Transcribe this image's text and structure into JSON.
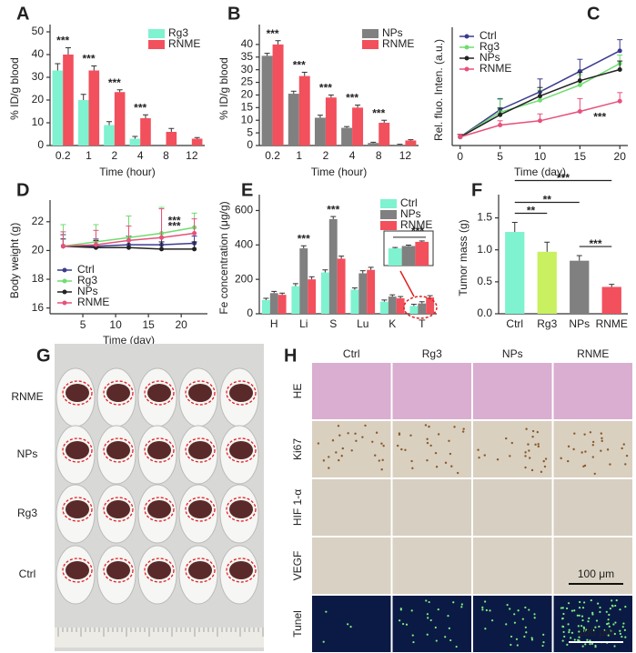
{
  "chart_data": [
    {
      "type": "bar",
      "panel": "A",
      "y_label": "% ID/g blood",
      "x_label": "Time (hour)",
      "categories": [
        "0.2",
        "1",
        "2",
        "4",
        "8",
        "12"
      ],
      "series": [
        {
          "name": "Rg3",
          "color": "#7ff2d0",
          "values": [
            33,
            20,
            9,
            3,
            0,
            0
          ],
          "errors": [
            3,
            2.5,
            1.5,
            1,
            0,
            0
          ]
        },
        {
          "name": "RNME",
          "color": "#f2505c",
          "values": [
            40,
            33,
            23.5,
            12,
            6,
            3
          ],
          "errors": [
            3,
            2,
            1,
            1.5,
            1.5,
            0.5
          ]
        }
      ],
      "ylim": [
        0,
        50
      ],
      "yticks": [
        0,
        10,
        20,
        30,
        40,
        50
      ],
      "legend": "upper right",
      "annotations": [
        {
          "text": "***",
          "category": "0.2"
        },
        {
          "text": "***",
          "category": "1"
        },
        {
          "text": "***",
          "category": "2"
        },
        {
          "text": "***",
          "category": "4"
        }
      ]
    },
    {
      "type": "bar",
      "panel": "B",
      "y_label": "% ID/g blood",
      "x_label": "Time (hour)",
      "categories": [
        "0.2",
        "1",
        "2",
        "4",
        "8",
        "12"
      ],
      "series": [
        {
          "name": "NPs",
          "color": "#808080",
          "values": [
            35.5,
            20.5,
            11,
            7,
            1,
            0.3
          ],
          "errors": [
            1,
            1,
            1,
            0.5,
            0.3,
            0.2
          ]
        },
        {
          "name": "RNME",
          "color": "#f2505c",
          "values": [
            40,
            27.5,
            19,
            15,
            9,
            2
          ],
          "errors": [
            1.5,
            1.5,
            1,
            1,
            1,
            0.3
          ]
        }
      ],
      "ylim": [
        0,
        45
      ],
      "yticks": [
        0,
        5,
        10,
        15,
        20,
        25,
        30,
        35,
        40
      ],
      "legend": "upper right",
      "annotations": [
        {
          "text": "***",
          "category": "0.2"
        },
        {
          "text": "***",
          "category": "1"
        },
        {
          "text": "***",
          "category": "2"
        },
        {
          "text": "***",
          "category": "4"
        },
        {
          "text": "***",
          "category": "8"
        }
      ]
    },
    {
      "type": "line",
      "panel": "C",
      "y_label": "Rel. fluo. Inten. (a.u.)",
      "x_label": "Time (day)",
      "x": [
        0,
        5,
        10,
        15,
        20
      ],
      "series": [
        {
          "name": "Ctrl",
          "color": "#3b3b8f",
          "values": [
            1.0,
            4.2,
            6.3,
            8.7,
            11.1
          ],
          "errors": [
            0.3,
            1.3,
            1.5,
            1.4,
            1.3
          ]
        },
        {
          "name": "Rg3",
          "color": "#6fdc6f",
          "values": [
            1.0,
            3.9,
            5.3,
            7.1,
            9.6
          ],
          "errors": [
            0.3,
            1.5,
            1.2,
            1.2,
            1.0
          ]
        },
        {
          "name": "NPs",
          "color": "#222222",
          "values": [
            1.0,
            3.6,
            5.8,
            7.6,
            8.9
          ],
          "errors": [
            0.3,
            0.8,
            1.0,
            1.0,
            1.0
          ]
        },
        {
          "name": "RNME",
          "color": "#e8507a",
          "values": [
            1.0,
            2.4,
            2.9,
            4.0,
            5.2
          ],
          "errors": [
            0.3,
            0.5,
            0.8,
            1.5,
            1.0
          ]
        }
      ],
      "xlim": [
        -1,
        21
      ],
      "xticks": [
        0,
        5,
        10,
        15,
        20
      ],
      "ylim": [
        0,
        13
      ],
      "legend": "upper left",
      "annotations": [
        {
          "text": "***",
          "series": "RNME"
        }
      ]
    },
    {
      "type": "line",
      "panel": "D",
      "y_label": "Body weight (g)",
      "x_label": "Time (day)",
      "x": [
        2,
        7,
        12,
        17,
        22
      ],
      "series": [
        {
          "name": "Ctrl",
          "color": "#3b3b8f",
          "values": [
            20.3,
            20.3,
            20.4,
            20.4,
            20.5
          ],
          "errors": [
            0.8,
            0.5,
            0.6,
            0.5,
            0.5
          ]
        },
        {
          "name": "Rg3",
          "color": "#6fdc6f",
          "values": [
            20.3,
            20.6,
            20.9,
            21.2,
            21.6
          ],
          "errors": [
            1.5,
            1.2,
            1.5,
            1.8,
            1.0
          ]
        },
        {
          "name": "NPs",
          "color": "#222222",
          "values": [
            20.3,
            20.2,
            20.2,
            20.1,
            20.1
          ],
          "errors": [
            0.5,
            0.5,
            0.5,
            0.5,
            0.5
          ]
        },
        {
          "name": "RNME",
          "color": "#e8507a",
          "values": [
            20.3,
            20.4,
            20.7,
            20.9,
            21.2
          ],
          "errors": [
            1.0,
            1.0,
            1.0,
            2.0,
            1.0
          ]
        }
      ],
      "xlim": [
        0,
        24
      ],
      "xticks": [
        5,
        10,
        15,
        20
      ],
      "ylim": [
        15.6,
        23
      ],
      "yticks": [
        16,
        18,
        20,
        22
      ],
      "legend": "lower left",
      "annotations": [
        {
          "text": "***",
          "series": "Rg3"
        },
        {
          "text": "***",
          "series": "RNME"
        }
      ]
    },
    {
      "type": "bar",
      "panel": "E",
      "y_label": "Fe concentration (μg/g)",
      "categories": [
        "H",
        "Li",
        "S",
        "Lu",
        "K",
        "T"
      ],
      "series": [
        {
          "name": "Ctrl",
          "color": "#7ff2d0",
          "values": [
            80,
            160,
            240,
            140,
            70,
            45
          ],
          "errors": [
            10,
            15,
            15,
            10,
            10,
            10
          ]
        },
        {
          "name": "NPs",
          "color": "#808080",
          "values": [
            120,
            380,
            550,
            235,
            100,
            60
          ],
          "errors": [
            10,
            15,
            15,
            15,
            10,
            10
          ]
        },
        {
          "name": "RNME",
          "color": "#f2505c",
          "values": [
            110,
            200,
            320,
            255,
            90,
            95
          ],
          "errors": [
            10,
            15,
            15,
            15,
            10,
            10
          ]
        }
      ],
      "ylim": [
        0,
        650
      ],
      "yticks": [
        0,
        200,
        400,
        600
      ],
      "legend": "upper right",
      "annotations": [
        {
          "text": "***",
          "category": "Li"
        },
        {
          "text": "***",
          "category": "S"
        }
      ]
    },
    {
      "type": "bar",
      "panel": "F",
      "y_label": "Tumor mass (g)",
      "categories": [
        "Ctrl",
        "Rg3",
        "NPs",
        "RNME"
      ],
      "values": [
        1.28,
        0.97,
        0.83,
        0.42
      ],
      "errors": [
        0.15,
        0.15,
        0.08,
        0.04
      ],
      "colors": [
        "#7ff2d0",
        "#c8f060",
        "#808080",
        "#f2505c"
      ],
      "ylim": [
        0,
        1.75
      ],
      "yticks": [
        {
          "value": 0,
          "label": "0.0"
        },
        0.5,
        {
          "value": 1,
          "label": "1.0"
        },
        1.5
      ],
      "annotations": [
        {
          "text": "***",
          "between": [
            "Ctrl",
            "RNME"
          ]
        },
        {
          "text": "**",
          "between": [
            "Ctrl",
            "NPs"
          ]
        },
        {
          "text": "**",
          "between": [
            "Ctrl",
            "Rg3"
          ]
        },
        {
          "text": "***",
          "between": [
            "NPs",
            "RNME"
          ]
        }
      ]
    },
    {
      "type": "bar",
      "inset": true,
      "categories": [
        null
      ],
      "series": [
        {
          "name": "Ctrl",
          "color": "#7ff2d0",
          "values": [
            290
          ],
          "errors": [
            15
          ]
        },
        {
          "name": "NPs",
          "color": "#808080",
          "values": [
            330
          ],
          "errors": [
            15
          ]
        },
        {
          "name": "RNME",
          "color": "#f2505c",
          "values": [
            400
          ],
          "errors": [
            15
          ]
        }
      ],
      "ylim": [
        0,
        460
      ],
      "annotations": [
        {
          "text": "***"
        }
      ]
    }
  ],
  "photo": {
    "panel": "G",
    "rows": [
      "RNME",
      "NPs",
      "Rg3",
      "Ctrl"
    ]
  },
  "histology": {
    "panel": "H",
    "columns": [
      "Ctrl",
      "Rg3",
      "NPs",
      "RNME"
    ],
    "rows": [
      "HE",
      "Ki67",
      "HIF 1-α",
      "VEGF",
      "Tunel"
    ],
    "scale_bars": [
      "100 μm",
      "100 μm"
    ]
  }
}
